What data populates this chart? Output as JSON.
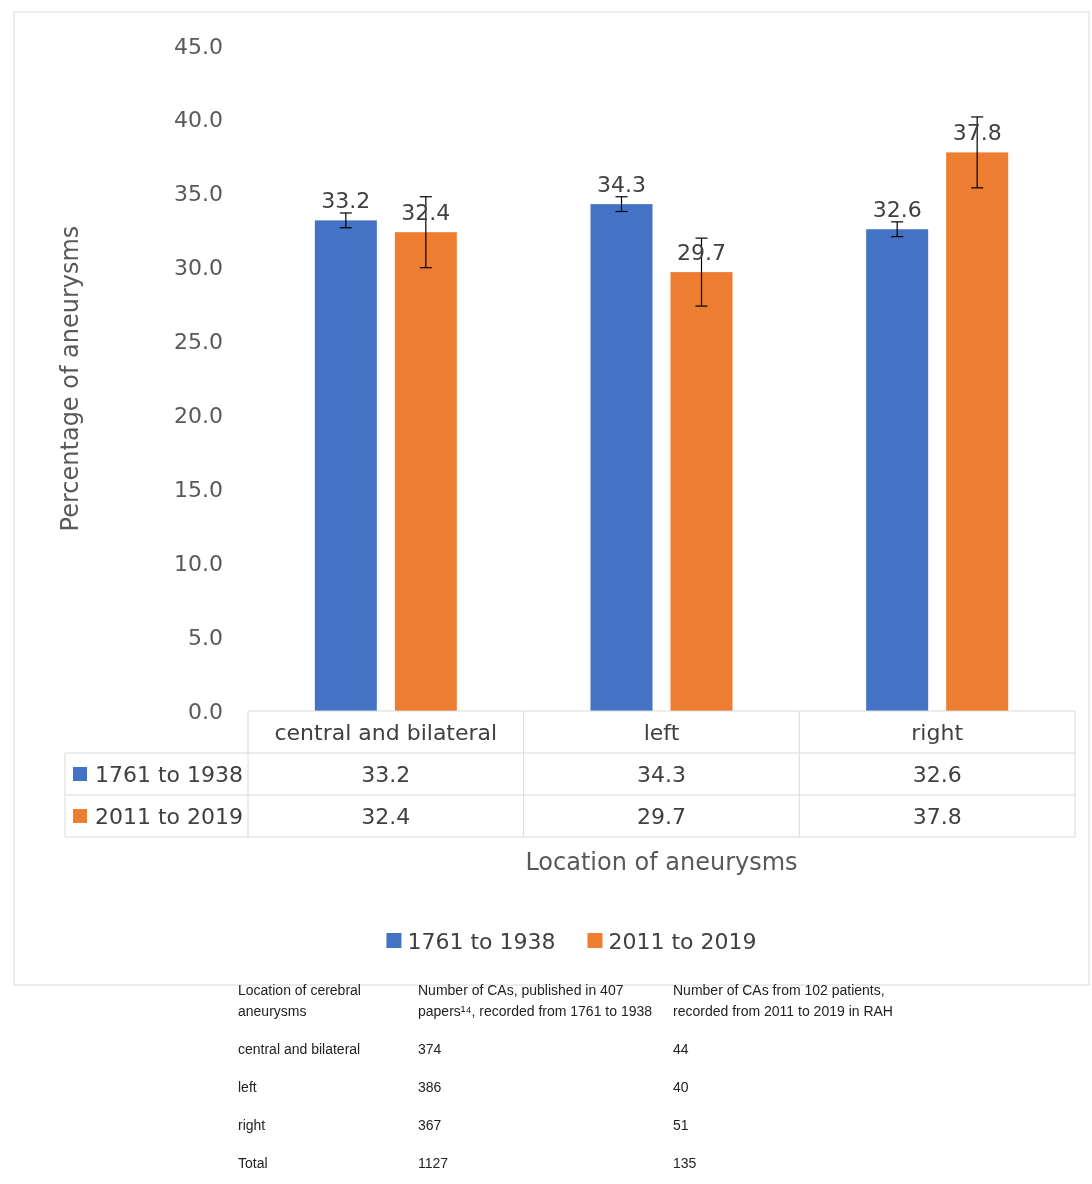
{
  "chart_data": [
    {
      "type": "bar",
      "ylabel": "Percentage of aneurysms",
      "xlabel": "Location of aneurysms",
      "categories": [
        "central and bilateral",
        "left",
        "right"
      ],
      "series": [
        {
          "name": "1761 to 1938",
          "color": "#4472c4",
          "values": [
            33.2,
            34.3,
            32.6
          ],
          "errors": [
            0.5,
            0.5,
            0.5
          ]
        },
        {
          "name": "2011 to 2019",
          "color": "#ed7d31",
          "values": [
            32.4,
            29.7,
            37.8
          ],
          "errors": [
            2.4,
            2.3,
            2.4
          ]
        }
      ],
      "annotations": [
        "33.2",
        "34.3",
        "32.6",
        "32.4",
        "29.7",
        "37.8"
      ],
      "ylim": [
        0,
        45
      ],
      "yticks": [
        {
          "value": 0,
          "label": "0.0"
        },
        {
          "value": 5,
          "label": "5.0"
        },
        {
          "value": 10,
          "label": "10.0"
        },
        {
          "value": 15,
          "label": "15.0"
        },
        {
          "value": 20,
          "label": "20.0"
        },
        {
          "value": 25,
          "label": "25.0"
        },
        {
          "value": 30,
          "label": "30.0"
        },
        {
          "value": 35,
          "label": "35.0"
        },
        {
          "value": 40,
          "label": "40.0"
        },
        {
          "value": 45,
          "label": "45.0"
        }
      ],
      "data_labels": true,
      "grid": false,
      "legend": "bottom"
    },
    {
      "type": "other",
      "annotations": [
        "Location of cerebral aneurysms",
        "Number of CAs, published in 407 papers¹⁴, recorded from 1761 to 1938",
        "Number of CAs from 102 patients, recorded from 2011 to 2019 in RAH",
        "central and bilateral",
        "374",
        "44",
        "left",
        "386",
        "40",
        "right",
        "367",
        "51",
        "Total",
        "1127",
        "135"
      ]
    }
  ]
}
